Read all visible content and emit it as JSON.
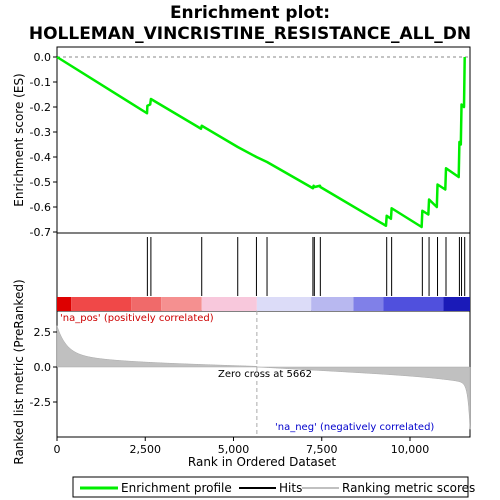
{
  "title_line1": "Enrichment plot:",
  "title_line2": "HOLLEMAN_VINCRISTINE_RESISTANCE_ALL_DN",
  "colors": {
    "es_line": "#00ee00",
    "hits": "#000000",
    "metric_fill": "#c0c0c0",
    "pos_text": "#cc0000",
    "neg_text": "#0000cc",
    "zero_cross": "#aaaaaa"
  },
  "chart_data": {
    "type": "line",
    "x_range": [
      0,
      11700
    ],
    "n_genes": 11700,
    "xlabel": "Rank in Ordered Dataset",
    "x_ticks": [
      0,
      2500,
      5000,
      7500,
      10000
    ],
    "x_tick_labels": [
      "0",
      "2,500",
      "5,000",
      "7,500",
      "10,000"
    ],
    "es_panel": {
      "ylabel": "Enrichment score (ES)",
      "ylim": [
        -0.7,
        0.0
      ],
      "y_ticks": [
        0.0,
        -0.1,
        -0.2,
        -0.3,
        -0.4,
        -0.5,
        -0.6,
        -0.7
      ],
      "y_tick_labels": [
        "0.0",
        "-0.1",
        "-0.2",
        "-0.3",
        "-0.4",
        "-0.5",
        "-0.6",
        "-0.7"
      ],
      "points": [
        [
          0,
          0.0
        ],
        [
          2550,
          -0.225
        ],
        [
          2560,
          -0.195
        ],
        [
          2640,
          -0.19
        ],
        [
          2660,
          -0.168
        ],
        [
          4080,
          -0.287
        ],
        [
          4100,
          -0.275
        ],
        [
          5120,
          -0.36
        ],
        [
          5650,
          -0.4
        ],
        [
          5950,
          -0.42
        ],
        [
          7250,
          -0.525
        ],
        [
          7270,
          -0.515
        ],
        [
          7300,
          -0.52
        ],
        [
          7450,
          -0.515
        ],
        [
          7460,
          -0.52
        ],
        [
          9320,
          -0.675
        ],
        [
          9340,
          -0.635
        ],
        [
          9460,
          -0.647
        ],
        [
          9480,
          -0.605
        ],
        [
          10330,
          -0.68
        ],
        [
          10350,
          -0.615
        ],
        [
          10520,
          -0.63
        ],
        [
          10540,
          -0.57
        ],
        [
          10760,
          -0.6
        ],
        [
          10780,
          -0.51
        ],
        [
          11000,
          -0.53
        ],
        [
          11020,
          -0.445
        ],
        [
          11380,
          -0.48
        ],
        [
          11400,
          -0.34
        ],
        [
          11440,
          -0.35
        ],
        [
          11460,
          -0.19
        ],
        [
          11530,
          -0.2
        ],
        [
          11550,
          0.0
        ]
      ]
    },
    "hits": [
      2560,
      2660,
      4100,
      5120,
      5650,
      5950,
      7250,
      7290,
      7460,
      9340,
      9480,
      10350,
      10540,
      10780,
      11020,
      11400,
      11460,
      11550
    ],
    "metric_panel": {
      "ylabel": "Ranked list metric (PreRanked)",
      "ylim": [
        -5.0,
        4.0
      ],
      "y_ticks": [
        2.5,
        0.0,
        -2.5
      ],
      "y_tick_labels": [
        "2.5",
        "0.0",
        "-2.5"
      ],
      "zero_cross_rank": 5662,
      "zero_cross_label": "Zero cross at 5662",
      "pos_label": "'na_pos' (positively correlated)",
      "neg_label": "'na_neg' (negatively correlated)"
    }
  },
  "legend": {
    "items": [
      {
        "label": "Enrichment profile"
      },
      {
        "label": "Hits"
      },
      {
        "label": "Ranking metric scores"
      }
    ]
  }
}
